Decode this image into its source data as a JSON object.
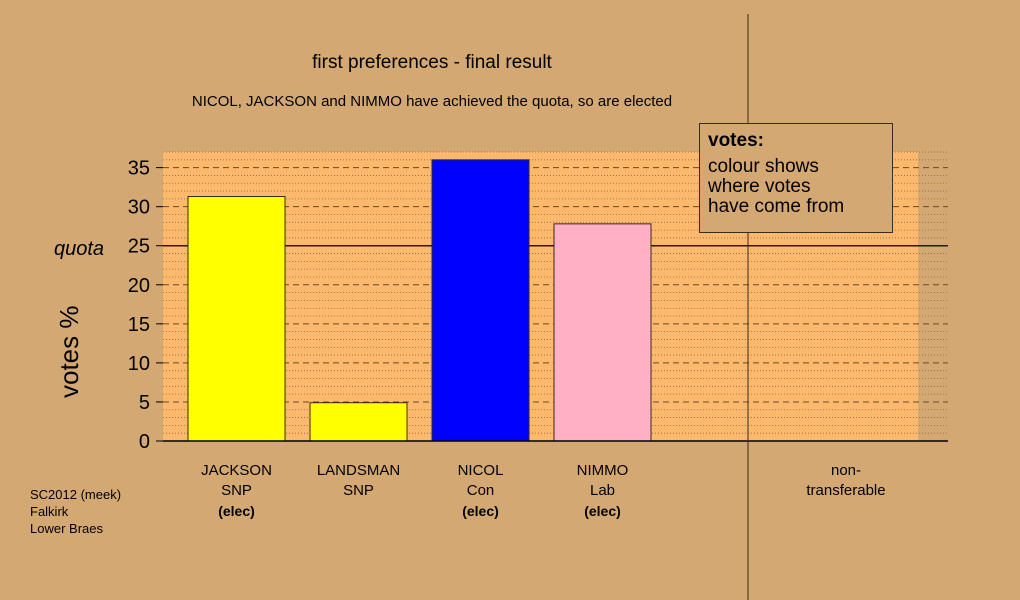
{
  "chart_data": {
    "type": "bar",
    "title": "first preferences - final result",
    "subtitle": "NICOL, JACKSON and NIMMO have achieved the quota, so are elected",
    "ylabel": "votes %",
    "ylim": [
      0,
      37
    ],
    "yticks": [
      0,
      5,
      10,
      15,
      20,
      25,
      30,
      35
    ],
    "quota": 25,
    "quota_label": "quota",
    "categories": [
      {
        "name": "JACKSON",
        "party": "SNP",
        "elected": "(elec)",
        "value": 31.3,
        "color": "#ffff00"
      },
      {
        "name": "LANDSMAN",
        "party": "SNP",
        "elected": "",
        "value": 4.9,
        "color": "#ffff00"
      },
      {
        "name": "NICOL",
        "party": "Con",
        "elected": "(elec)",
        "value": 36,
        "color": "#0000ff"
      },
      {
        "name": "NIMMO",
        "party": "Lab",
        "elected": "(elec)",
        "value": 27.8,
        "color": "#ffb0c4"
      }
    ],
    "non_transferable": {
      "line1": "non-",
      "line2": "transferable",
      "value": 0
    },
    "legend": {
      "title": "votes:",
      "lines": [
        "colour shows",
        "where votes",
        "have come from"
      ]
    },
    "grid": true,
    "footer": [
      "SC2012 (meek)",
      "Falkirk",
      "Lower Braes"
    ]
  },
  "colors": {
    "background": "#d4a872",
    "plot_background": "#fcb96d"
  }
}
